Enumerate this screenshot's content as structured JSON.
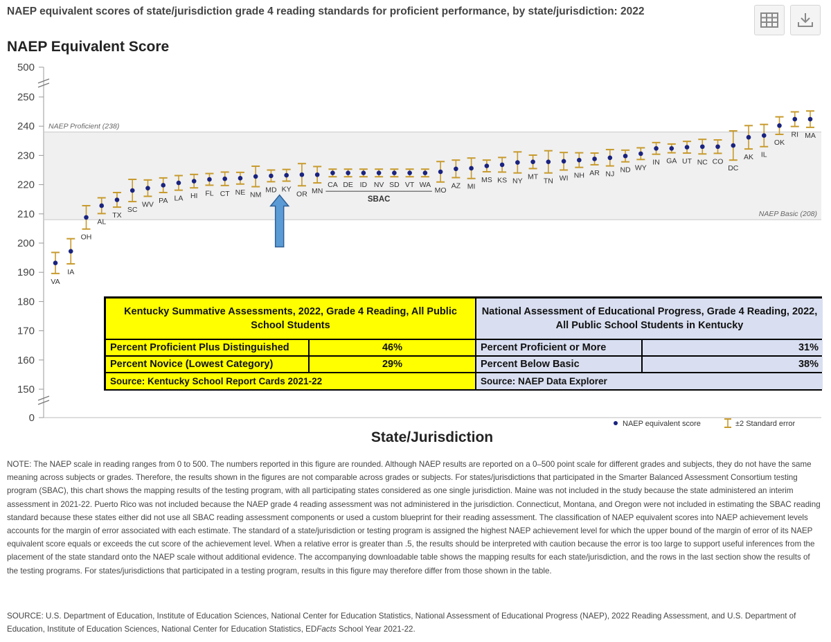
{
  "page_title": "NAEP equivalent scores of state/jurisdiction grade 4 reading standards for proficient performance, by state/jurisdiction: 2022",
  "toolbar": {
    "table_icon": "table-icon",
    "download_icon": "download-icon"
  },
  "chart_data": {
    "type": "scatter",
    "title": "NAEP equivalent scores of state/jurisdiction grade 4 reading standards for proficient performance, by state/jurisdiction: 2022",
    "ylabel": "NAEP Equivalent Score",
    "xlabel": "State/Jurisdiction",
    "y_ticks": [
      "500",
      "250",
      "240",
      "230",
      "220",
      "210",
      "200",
      "190",
      "180",
      "170",
      "160",
      "150",
      "0"
    ],
    "ylim": [
      150,
      250
    ],
    "axis_breaks": [
      "250-500",
      "0-150"
    ],
    "reference_lines": [
      {
        "label": "NAEP Proficient (238)",
        "value": 238
      },
      {
        "label": "NAEP Basic (208)",
        "value": 208
      }
    ],
    "band_color": "#f0f0f0",
    "point_color": "#1a237e",
    "error_bar_color": "#c79a2c",
    "points": [
      {
        "state": "VA",
        "score": 193.2,
        "err": 3.6
      },
      {
        "state": "IA",
        "score": 197.2,
        "err": 4.3
      },
      {
        "state": "OH",
        "score": 208.8,
        "err": 4.0
      },
      {
        "state": "AL",
        "score": 212.8,
        "err": 2.7
      },
      {
        "state": "TX",
        "score": 214.8,
        "err": 2.5
      },
      {
        "state": "SC",
        "score": 218.0,
        "err": 3.8
      },
      {
        "state": "WV",
        "score": 218.8,
        "err": 2.8
      },
      {
        "state": "PA",
        "score": 219.8,
        "err": 2.5
      },
      {
        "state": "LA",
        "score": 220.6,
        "err": 2.5
      },
      {
        "state": "HI",
        "score": 221.2,
        "err": 2.3
      },
      {
        "state": "FL",
        "score": 221.8,
        "err": 2.0
      },
      {
        "state": "CT",
        "score": 222.0,
        "err": 2.3
      },
      {
        "state": "NE",
        "score": 222.2,
        "err": 2.0
      },
      {
        "state": "NM",
        "score": 222.8,
        "err": 3.5
      },
      {
        "state": "MD",
        "score": 223.0,
        "err": 2.0
      },
      {
        "state": "KY",
        "score": 223.2,
        "err": 2.0
      },
      {
        "state": "OR",
        "score": 223.4,
        "err": 3.8
      },
      {
        "state": "MN",
        "score": 223.4,
        "err": 2.8
      },
      {
        "state": "CA",
        "score": 224.0,
        "err": 1.3
      },
      {
        "state": "DE",
        "score": 224.0,
        "err": 1.3
      },
      {
        "state": "ID",
        "score": 224.0,
        "err": 1.3
      },
      {
        "state": "NV",
        "score": 224.0,
        "err": 1.3
      },
      {
        "state": "SD",
        "score": 224.0,
        "err": 1.3
      },
      {
        "state": "VT",
        "score": 224.0,
        "err": 1.3
      },
      {
        "state": "WA",
        "score": 224.0,
        "err": 1.3
      },
      {
        "state": "MO",
        "score": 224.4,
        "err": 3.5
      },
      {
        "state": "AZ",
        "score": 225.4,
        "err": 3.0
      },
      {
        "state": "MI",
        "score": 225.6,
        "err": 3.5
      },
      {
        "state": "MS",
        "score": 226.4,
        "err": 2.0
      },
      {
        "state": "KS",
        "score": 226.8,
        "err": 2.5
      },
      {
        "state": "NY",
        "score": 227.6,
        "err": 3.6
      },
      {
        "state": "MT",
        "score": 227.8,
        "err": 2.3
      },
      {
        "state": "TN",
        "score": 227.8,
        "err": 3.8
      },
      {
        "state": "WI",
        "score": 228.0,
        "err": 3.0
      },
      {
        "state": "NH",
        "score": 228.4,
        "err": 2.5
      },
      {
        "state": "AR",
        "score": 228.8,
        "err": 2.0
      },
      {
        "state": "NJ",
        "score": 229.2,
        "err": 2.8
      },
      {
        "state": "ND",
        "score": 229.8,
        "err": 2.0
      },
      {
        "state": "WY",
        "score": 230.6,
        "err": 2.0
      },
      {
        "state": "IN",
        "score": 232.4,
        "err": 2.0
      },
      {
        "state": "GA",
        "score": 232.4,
        "err": 1.5
      },
      {
        "state": "UT",
        "score": 232.8,
        "err": 2.0
      },
      {
        "state": "NC",
        "score": 233.0,
        "err": 2.5
      },
      {
        "state": "CO",
        "score": 233.0,
        "err": 2.3
      },
      {
        "state": "DC",
        "score": 233.4,
        "err": 5.0
      },
      {
        "state": "AK",
        "score": 236.2,
        "err": 4.0
      },
      {
        "state": "IL",
        "score": 236.8,
        "err": 3.8
      },
      {
        "state": "OK",
        "score": 240.2,
        "err": 3.0
      },
      {
        "state": "RI",
        "score": 242.4,
        "err": 2.5
      },
      {
        "state": "MA",
        "score": 242.4,
        "err": 2.8
      }
    ],
    "annotations": [
      {
        "type": "bracket",
        "label": "SBAC",
        "from": "CA",
        "to": "WA"
      },
      {
        "type": "arrow",
        "target": "KY",
        "color": "#5b9bd5"
      }
    ],
    "legend": [
      {
        "label": "NAEP equivalent score",
        "marker": "dot"
      },
      {
        "label": "±2 Standard error",
        "marker": "error-bar"
      }
    ],
    "legend_position": "bottom-right"
  },
  "overlay_table": {
    "kentucky": {
      "header": "Kentucky Summative Assessments, 2022, Grade 4 Reading, All Public School Students",
      "rows": [
        {
          "label": "Percent Proficient Plus Distinguished",
          "value": "46%"
        },
        {
          "label": "Percent Novice (Lowest Category)",
          "value": "29%"
        }
      ],
      "source": "Source: Kentucky School Report Cards 2021-22"
    },
    "naep": {
      "header": "National Assessment of Educational Progress, Grade 4 Reading, 2022, All Public School Students in Kentucky",
      "rows": [
        {
          "label": "Percent Proficient or More",
          "value": "31%"
        },
        {
          "label": "Percent Below Basic",
          "value": "38%"
        }
      ],
      "source": "Source: NAEP Data Explorer"
    }
  },
  "note": "NOTE: The NAEP scale in reading ranges from 0 to 500. The numbers reported in this figure are rounded. Although NAEP results are reported on a 0–500 point scale for different grades and subjects, they do not have the same meaning across subjects or grades. Therefore, the results shown in the figures are not comparable across grades or subjects. For states/jurisdictions that participated in the Smarter Balanced Assessment Consortium testing program (SBAC), this chart shows the mapping results of the testing program, with all participating states considered as one single jurisdiction. Maine was not included in the study because the state administered an interim assessment in 2021-22. Puerto Rico was not included because the NAEP grade 4 reading assessment was not administered in the jurisdiction. Connecticut, Montana, and Oregon were not included in estimating the SBAC reading standard because these states either did not use all SBAC reading assessment components or used a custom blueprint for their reading assessment. The classification of NAEP equivalent scores into NAEP achievement levels accounts for the margin of error associated with each estimate. The standard of a state/jurisdiction or testing program is assigned the highest NAEP achievement level for which the upper bound of the margin of error of its NAEP equivalent score equals or exceeds the cut score of the achievement level. When a relative error is greater than .5, the results should be interpreted with caution because the error is too large to support useful inferences from the placement of the state standard onto the NAEP scale without additional evidence. The accompanying downloadable table shows the mapping results for each state/jurisdiction, and the rows in the last section show the results of the testing programs. For states/jurisdictions that participated in a testing program, results in this figure may therefore differ from those shown in the table.",
  "source": {
    "prefix": "SOURCE: U.S. Department of Education, Institute of Education Sciences, National Center for Education Statistics, National Assessment of Educational Progress (NAEP), 2022 Reading Assessment, and U.S. Department of Education, Institute of Education Sciences, National Center for Education Statistics, ED",
    "italic": "Facts",
    "suffix": " School Year 2021-22."
  }
}
